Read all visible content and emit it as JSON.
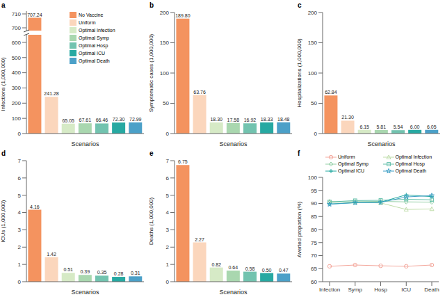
{
  "chart_data": [
    {
      "type": "bar",
      "title": "a",
      "x_label": "Scenarios",
      "y_label": "Infections (1,000,000)",
      "categories": [
        "No Vaccine",
        "Uniform",
        "Optimal Infection",
        "Optimal Symp",
        "Optimal Hosp",
        "Optimal ICU",
        "Optimal Death"
      ],
      "values": [
        707.24,
        241.28,
        65.05,
        67.61,
        66.46,
        72.3,
        72.99
      ],
      "value_labels": [
        "707.24",
        "241.28",
        "65.05",
        "67.61",
        "66.46",
        "72.30",
        "72.99"
      ],
      "colors": [
        "#F4935F",
        "#FBD6BC",
        "#D6EAC6",
        "#A9D7AF",
        "#72C3AF",
        "#27A9A2",
        "#4BA0C8"
      ],
      "ylim": [
        0,
        712
      ],
      "y_break": [
        650,
        698
      ],
      "yticks": [
        0,
        100,
        200,
        300,
        400,
        500,
        600,
        700,
        710
      ],
      "grid": false,
      "data_labels": true,
      "tick_labels": "y",
      "legend": "top-right"
    },
    {
      "type": "bar",
      "title": "b",
      "x_label": "Scenarios",
      "y_label": "Symptomatic cases (1,000,000)",
      "categories": [
        "No Vaccine",
        "Uniform",
        "Optimal Infection",
        "Optimal Symp",
        "Optimal Hosp",
        "Optimal ICU",
        "Optimal Death"
      ],
      "values": [
        189.8,
        63.76,
        18.3,
        17.58,
        16.92,
        18.33,
        18.48
      ],
      "value_labels": [
        "189.80",
        "63.76",
        "18.30",
        "17.58",
        "16.92",
        "18.33",
        "18.48"
      ],
      "colors": [
        "#F4935F",
        "#FBD6BC",
        "#D6EAC6",
        "#A9D7AF",
        "#72C3AF",
        "#27A9A2",
        "#4BA0C8"
      ],
      "ylim": [
        0,
        200
      ],
      "yticks": [
        0,
        50,
        100,
        150,
        200
      ],
      "grid": false,
      "data_labels": true,
      "tick_labels": "y"
    },
    {
      "type": "bar",
      "title": "c",
      "x_label": "Scenarios",
      "y_label": "Hospitalizations (1,000,000)",
      "categories": [
        "No Vaccine",
        "Uniform",
        "Optimal Infection",
        "Optimal Symp",
        "Optimal Hosp",
        "Optimal ICU",
        "Optimal Death"
      ],
      "values": [
        62.84,
        21.3,
        6.15,
        5.81,
        5.54,
        6.0,
        6.05
      ],
      "value_labels": [
        "62.84",
        "21.30",
        "6.15",
        "5.81",
        "5.54",
        "6.00",
        "6.05"
      ],
      "colors": [
        "#F4935F",
        "#FBD6BC",
        "#D6EAC6",
        "#A9D7AF",
        "#72C3AF",
        "#27A9A2",
        "#4BA0C8"
      ],
      "ylim": [
        0,
        200
      ],
      "yticks": [
        0,
        50,
        100,
        150,
        200
      ],
      "grid": false,
      "data_labels": true,
      "tick_labels": "y"
    },
    {
      "type": "bar",
      "title": "d",
      "x_label": "Scenarios",
      "y_label": "ICUs (1,000,000)",
      "categories": [
        "No Vaccine",
        "Uniform",
        "Optimal Infection",
        "Optimal Symp",
        "Optimal Hosp",
        "Optimal ICU",
        "Optimal Death"
      ],
      "values": [
        4.16,
        1.42,
        0.51,
        0.39,
        0.35,
        0.28,
        0.31
      ],
      "value_labels": [
        "4.16",
        "1.42",
        "0.51",
        "0.39",
        "0.35",
        "0.28",
        "0.31"
      ],
      "colors": [
        "#F4935F",
        "#FBD6BC",
        "#D6EAC6",
        "#A9D7AF",
        "#72C3AF",
        "#27A9A2",
        "#4BA0C8"
      ],
      "ylim": [
        0,
        7
      ],
      "yticks": [
        0,
        1,
        2,
        3,
        4,
        5,
        6,
        7
      ],
      "grid": false,
      "data_labels": true,
      "tick_labels": "y"
    },
    {
      "type": "bar",
      "title": "e",
      "x_label": "Scenarios",
      "y_label": "Deaths (1,000,000)",
      "categories": [
        "No Vaccine",
        "Uniform",
        "Optimal Infection",
        "Optimal Symp",
        "Optimal Hosp",
        "Optimal ICU",
        "Optimal Death"
      ],
      "values": [
        6.75,
        2.27,
        0.82,
        0.64,
        0.58,
        0.5,
        0.47
      ],
      "value_labels": [
        "6.75",
        "2.27",
        "0.82",
        "0.64",
        "0.58",
        "0.50",
        "0.47"
      ],
      "colors": [
        "#F4935F",
        "#FBD6BC",
        "#D6EAC6",
        "#A9D7AF",
        "#72C3AF",
        "#27A9A2",
        "#4BA0C8"
      ],
      "ylim": [
        0,
        7
      ],
      "yticks": [
        0,
        1,
        2,
        3,
        4,
        5,
        6,
        7
      ],
      "grid": false,
      "data_labels": true,
      "tick_labels": "y"
    },
    {
      "type": "line",
      "title": "f",
      "y_label": "Averted proportion (%)",
      "categories": [
        "Infection",
        "Symp",
        "Hosp",
        "ICU",
        "Death"
      ],
      "ylim": [
        60,
        100
      ],
      "yticks": [
        60,
        65,
        70,
        75,
        80,
        85,
        90,
        95,
        100
      ],
      "grid": false,
      "legend": "top",
      "series": [
        {
          "name": "Uniform",
          "color": "#F4A79C",
          "marker": "circle",
          "values": [
            65.9,
            66.4,
            66.1,
            65.9,
            66.4
          ]
        },
        {
          "name": "Optimal Infection",
          "color": "#BFDDAA",
          "marker": "triangle",
          "values": [
            90.8,
            90.4,
            90.2,
            87.7,
            87.9
          ]
        },
        {
          "name": "Optimal Symp",
          "color": "#93CFA6",
          "marker": "diamond",
          "values": [
            90.4,
            90.7,
            90.8,
            90.6,
            90.5
          ]
        },
        {
          "name": "Optimal Hosp",
          "color": "#62BFAA",
          "marker": "square",
          "values": [
            90.6,
            91.1,
            91.2,
            91.6,
            91.4
          ]
        },
        {
          "name": "Optimal ICU",
          "color": "#22A8A0",
          "marker": "plus",
          "values": [
            89.8,
            90.3,
            90.5,
            93.3,
            92.6
          ]
        },
        {
          "name": "Optimal Death",
          "color": "#3F9FC6",
          "marker": "star",
          "values": [
            89.7,
            90.3,
            90.4,
            92.5,
            93.0
          ]
        }
      ]
    }
  ]
}
